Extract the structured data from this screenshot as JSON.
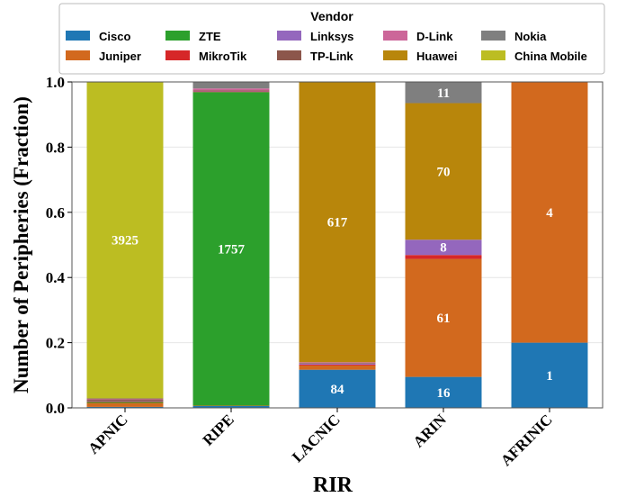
{
  "chart_data": {
    "type": "bar",
    "stacked": true,
    "normalized": true,
    "categories": [
      "APNIC",
      "RIPE",
      "LACNIC",
      "ARIN",
      "AFRINIC"
    ],
    "xlabel": "RIR",
    "ylabel": "Number of Peripheries (Fraction)",
    "ylim": [
      0,
      1.0
    ],
    "yticks": [
      "0.0",
      "0.2",
      "0.4",
      "0.6",
      "0.8",
      "1.0"
    ],
    "grid": true,
    "legend": {
      "title": "Vendor",
      "placement": "top",
      "columns": 5
    },
    "series": [
      {
        "name": "Cisco",
        "color": "#1f77b4",
        "values": [
          0.003,
          0.006,
          0.117,
          0.095,
          0.2
        ]
      },
      {
        "name": "Juniper",
        "color": "#d2691e",
        "values": [
          0.012,
          0.001,
          0.013,
          0.362,
          0.8
        ]
      },
      {
        "name": "ZTE",
        "color": "#2ca02c",
        "values": [
          0.003,
          0.962,
          0.0,
          0.0,
          0.0
        ]
      },
      {
        "name": "MikroTik",
        "color": "#d62728",
        "values": [
          0.002,
          0.002,
          0.003,
          0.012,
          0.0
        ]
      },
      {
        "name": "Linksys",
        "color": "#9467bd",
        "values": [
          0.001,
          0.001,
          0.003,
          0.047,
          0.0
        ]
      },
      {
        "name": "TP-Link",
        "color": "#8c564b",
        "values": [
          0.005,
          0.002,
          0.002,
          0.0,
          0.0
        ]
      },
      {
        "name": "D-Link",
        "color": "#cc6699",
        "values": [
          0.002,
          0.006,
          0.002,
          0.0,
          0.0
        ]
      },
      {
        "name": "Huawei",
        "color": "#b8860b",
        "values": [
          0.001,
          0.0,
          0.86,
          0.419,
          0.0
        ]
      },
      {
        "name": "Nokia",
        "color": "#7f7f7f",
        "values": [
          0.001,
          0.02,
          0.0,
          0.065,
          0.0
        ]
      },
      {
        "name": "China Mobile",
        "color": "#bcbd22",
        "values": [
          0.97,
          0.0,
          0.0,
          0.0,
          0.0
        ]
      }
    ],
    "data_labels": [
      {
        "category": "APNIC",
        "series": "China Mobile",
        "text": "3925"
      },
      {
        "category": "RIPE",
        "series": "ZTE",
        "text": "1757"
      },
      {
        "category": "LACNIC",
        "series": "Cisco",
        "text": "84"
      },
      {
        "category": "LACNIC",
        "series": "Huawei",
        "text": "617"
      },
      {
        "category": "ARIN",
        "series": "Cisco",
        "text": "16"
      },
      {
        "category": "ARIN",
        "series": "Juniper",
        "text": "61"
      },
      {
        "category": "ARIN",
        "series": "Linksys",
        "text": "8"
      },
      {
        "category": "ARIN",
        "series": "Huawei",
        "text": "70"
      },
      {
        "category": "ARIN",
        "series": "Nokia",
        "text": "11"
      },
      {
        "category": "AFRINIC",
        "series": "Cisco",
        "text": "1"
      },
      {
        "category": "AFRINIC",
        "series": "Juniper",
        "text": "4"
      }
    ]
  }
}
